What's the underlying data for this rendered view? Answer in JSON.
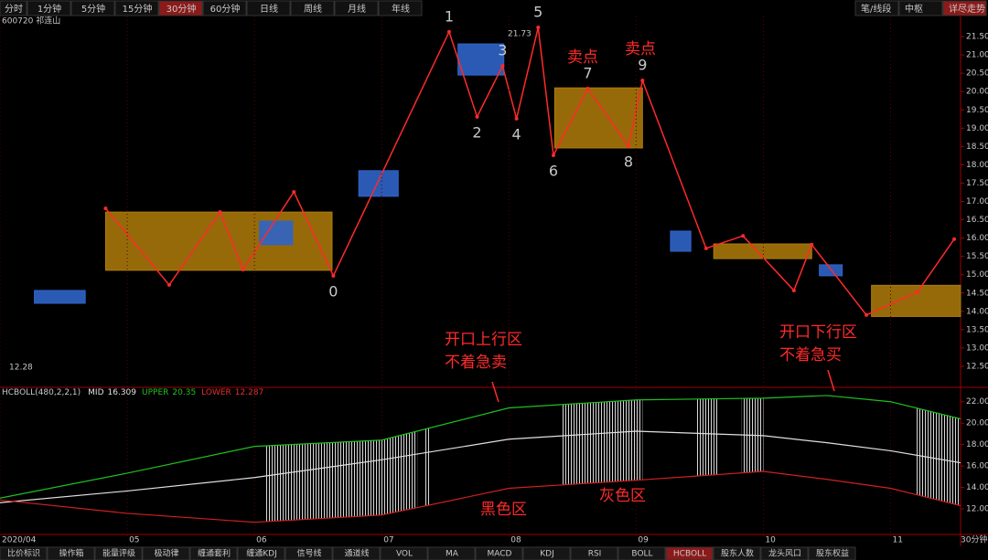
{
  "toolbar": {
    "periods": [
      "分时",
      "1分钟",
      "5分钟",
      "15分钟",
      "30分钟",
      "60分钟",
      "日线",
      "周线",
      "月线",
      "年线"
    ],
    "active": 4,
    "right": [
      "笔/线段",
      "中枢",
      "详尽走势"
    ],
    "right_active": 2
  },
  "stock": "600720 祁连山",
  "chart_data": [
    {
      "type": "line",
      "color": "#ff2a2a",
      "x": [
        4.83,
        5.33,
        5.73,
        5.91,
        6.31,
        6.62,
        7.53,
        7.75,
        7.95,
        8.06,
        8.23,
        8.35,
        8.62,
        8.94,
        9.05,
        9.55,
        9.84,
        10.24,
        10.38,
        10.81,
        11.21,
        11.5
      ],
      "values": [
        16.81,
        14.72,
        16.71,
        15.14,
        17.26,
        14.97,
        21.63,
        19.31,
        20.7,
        19.26,
        21.75,
        18.26,
        20.08,
        18.51,
        20.3,
        15.72,
        16.06,
        14.57,
        15.82,
        13.9,
        14.52,
        15.97
      ],
      "point_labels": [
        null,
        null,
        null,
        null,
        null,
        "0",
        "1",
        "2",
        "3",
        "4",
        "5",
        "6",
        "7",
        "8",
        "9",
        null,
        null,
        null,
        null,
        null,
        null,
        null
      ],
      "zones": [
        {
          "x": [
            4.83,
            6.61
          ],
          "y": [
            15.12,
            16.71
          ]
        },
        {
          "x": [
            8.36,
            9.05
          ],
          "y": [
            18.46,
            20.1
          ]
        },
        {
          "x": [
            9.61,
            10.38
          ],
          "y": [
            15.44,
            15.84
          ]
        },
        {
          "x": [
            10.85,
            11.55
          ],
          "y": [
            13.86,
            14.71
          ]
        }
      ],
      "zone_color": "#b07d0a",
      "boxes": [
        {
          "x": [
            4.27,
            4.67
          ],
          "y": [
            14.22,
            14.57
          ]
        },
        {
          "x": [
            6.04,
            6.3
          ],
          "y": [
            15.82,
            16.46
          ]
        },
        {
          "x": [
            6.82,
            7.13
          ],
          "y": [
            17.14,
            17.84
          ]
        },
        {
          "x": [
            7.6,
            7.96
          ],
          "y": [
            20.45,
            21.3
          ]
        },
        {
          "x": [
            9.27,
            9.43
          ],
          "y": [
            15.64,
            16.19
          ]
        },
        {
          "x": [
            10.44,
            10.62
          ],
          "y": [
            14.97,
            15.27
          ]
        }
      ],
      "box_color": "#2f64c8",
      "annotations": {
        "sell_1": "卖点",
        "sell_2": "卖点",
        "peak_price": "21.73",
        "low_price": "12.28",
        "up_zone": "开口上行区",
        "up_note": "不着急卖",
        "down_zone": "开口下行区",
        "down_note": "不着急买"
      },
      "xlim": [
        4,
        11.55
      ],
      "ylim": [
        12,
        22
      ],
      "yticks": [
        {
          "value": 12.5,
          "label": "12.50"
        },
        {
          "value": 13,
          "label": "13.00"
        },
        {
          "value": 13.5,
          "label": "13.50"
        },
        {
          "value": 14,
          "label": "14.00"
        },
        {
          "value": 14.5,
          "label": "14.50"
        },
        {
          "value": 15,
          "label": "15.00"
        },
        {
          "value": 15.5,
          "label": "15.50"
        },
        {
          "value": 16,
          "label": "16.00"
        },
        {
          "value": 16.5,
          "label": "16.50"
        },
        {
          "value": 17,
          "label": "17.00"
        },
        {
          "value": 17.5,
          "label": "17.50"
        },
        {
          "value": 18,
          "label": "18.00"
        },
        {
          "value": 18.5,
          "label": "18.50"
        },
        {
          "value": 19,
          "label": "19.00"
        },
        {
          "value": 19.5,
          "label": "19.50"
        },
        {
          "value": 20,
          "label": "20.00"
        },
        {
          "value": 20.5,
          "label": "20.50"
        },
        {
          "value": 21,
          "label": "21.00"
        },
        {
          "value": 21.5,
          "label": "21.50"
        }
      ]
    },
    {
      "type": "line",
      "title": "HCBOLL(480,2,2,1)",
      "x": [
        4,
        5,
        6,
        7,
        8,
        9,
        10,
        10.5,
        11,
        11.55
      ],
      "series": [
        {
          "name": "MID",
          "latest": 16.309,
          "color": "#e0e0e0",
          "values": [
            12.58,
            13.67,
            14.92,
            16.58,
            18.5,
            19.25,
            18.83,
            18.17,
            17.42,
            16.3
          ]
        },
        {
          "name": "UPPER",
          "latest": 20.35,
          "color": "#20c020",
          "values": [
            13.0,
            15.33,
            17.83,
            18.42,
            21.42,
            22.17,
            22.33,
            22.58,
            22.0,
            20.4
          ]
        },
        {
          "name": "LOWER",
          "latest": 12.287,
          "color": "#d02020",
          "values": [
            12.83,
            11.58,
            10.75,
            11.42,
            13.92,
            14.67,
            15.5,
            14.75,
            13.92,
            12.3
          ]
        }
      ],
      "shaded_ranges": [
        [
          6.09,
          7.28
        ],
        [
          7.33,
          7.38
        ],
        [
          8.41,
          9.05
        ],
        [
          9.47,
          9.65
        ],
        [
          9.83,
          10.0
        ],
        [
          11.2,
          11.55
        ]
      ],
      "annotations": {
        "black_zone": "黑色区",
        "gray_zone": "灰色区"
      },
      "period_label": "30分钟",
      "xlim": [
        4,
        11.55
      ],
      "ylim": [
        9.7,
        23
      ],
      "xticks": [
        {
          "value": 4,
          "label": "2020/04"
        },
        {
          "value": 5,
          "label": "05"
        },
        {
          "value": 6,
          "label": "06"
        },
        {
          "value": 7,
          "label": "07"
        },
        {
          "value": 8,
          "label": "08"
        },
        {
          "value": 9,
          "label": "09"
        },
        {
          "value": 10,
          "label": "10"
        },
        {
          "value": 11,
          "label": "11"
        }
      ],
      "yticks": [
        {
          "value": 12,
          "label": "12.00"
        },
        {
          "value": 14,
          "label": "14.00"
        },
        {
          "value": 16,
          "label": "16.00"
        },
        {
          "value": 18,
          "label": "18.00"
        },
        {
          "value": 20,
          "label": "20.00"
        },
        {
          "value": 22,
          "label": "22.00"
        }
      ]
    }
  ],
  "tabs": {
    "items": [
      "比价标识",
      "操作箱",
      "能量评级",
      "极动律",
      "缠通套利",
      "缠通KDJ",
      "信号线",
      "通道线",
      "VOL",
      "MA",
      "MACD",
      "KDJ",
      "RSI",
      "BOLL",
      "HCBOLL",
      "股东人数",
      "龙头风口",
      "股东权益"
    ],
    "active": 14
  }
}
